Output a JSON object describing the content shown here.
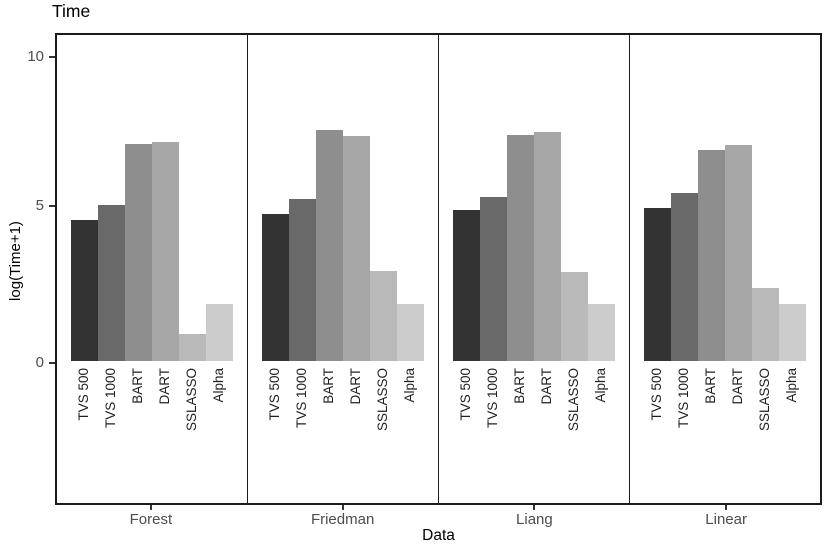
{
  "chart_data": {
    "type": "bar",
    "title": "Time",
    "xlabel": "Data",
    "ylabel": "log(Time+1)",
    "yticks": [
      0,
      5,
      10
    ],
    "ylim": [
      -4.6,
      10.8
    ],
    "grid": "off",
    "legend": "none",
    "bar_orientation": "vertical",
    "facets": [
      "Forest",
      "Friedman",
      "Liang",
      "Linear"
    ],
    "methods": [
      "TVS 500",
      "TVS 1000",
      "BART",
      "DART",
      "SSLASSO",
      "Alpha"
    ],
    "series": [
      {
        "name": "Forest",
        "values": [
          4.6,
          5.1,
          7.1,
          7.15,
          0.9,
          1.85
        ]
      },
      {
        "name": "Friedman",
        "values": [
          4.8,
          5.3,
          7.55,
          7.35,
          2.95,
          1.85
        ]
      },
      {
        "name": "Liang",
        "values": [
          4.95,
          5.35,
          7.4,
          7.5,
          2.9,
          1.85
        ]
      },
      {
        "name": "Linear",
        "values": [
          5.0,
          5.5,
          6.9,
          7.05,
          2.4,
          1.85
        ]
      }
    ],
    "bar_colors": [
      "#333333",
      "#696969",
      "#8e8e8e",
      "#a7a7a7",
      "#b9b9b9",
      "#cccccc"
    ],
    "axis_text_color": "#4d4d4d",
    "border_color": "#1b1b1b"
  }
}
